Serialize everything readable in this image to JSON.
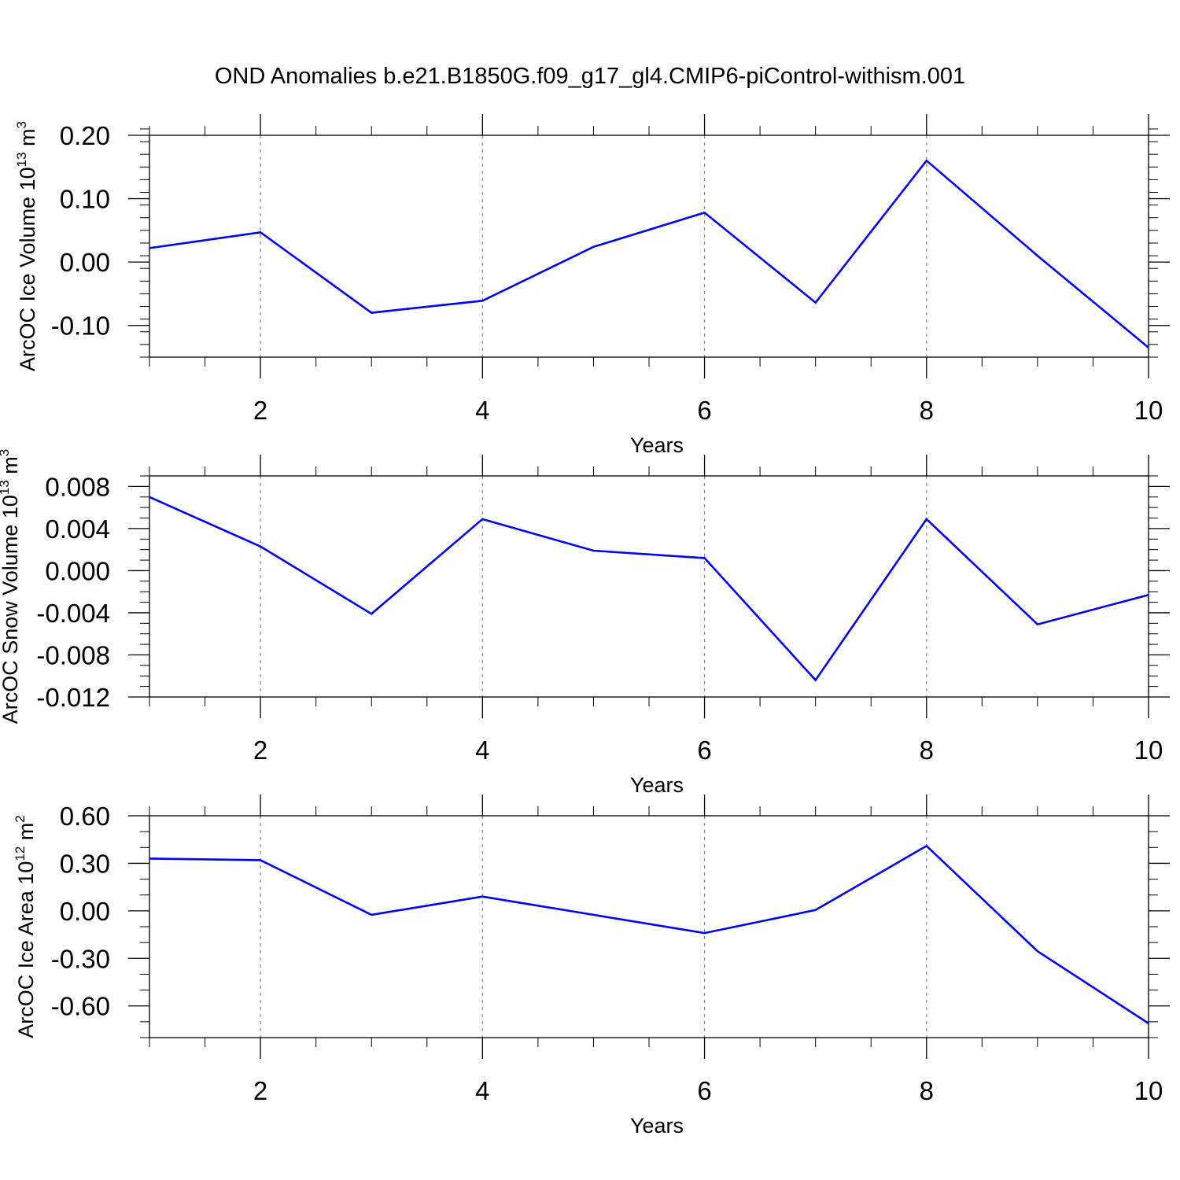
{
  "title": "OND Anomalies b.e21.B1850G.f09_g17_gl4.CMIP6-piControl-withism.001",
  "colors": {
    "line": "#0000ff",
    "axis": "#000000",
    "grid": "#888888"
  },
  "chart_data": [
    {
      "type": "line",
      "xlabel": "Years",
      "ylabel": {
        "text": "ArcOC Ice Volume 10",
        "sup": "13",
        "unit": " m",
        "unit_sup": "3"
      },
      "x": [
        1,
        2,
        3,
        4,
        5,
        6,
        7,
        8,
        9,
        10
      ],
      "y": [
        0.022,
        0.047,
        -0.08,
        -0.061,
        0.024,
        0.078,
        -0.064,
        0.16,
        0.01,
        -0.135
      ],
      "xlim": [
        1,
        10
      ],
      "ylim": [
        -0.15,
        0.2
      ],
      "xticks": [
        2,
        4,
        6,
        8,
        10
      ],
      "xtick_labels": [
        "2",
        "4",
        "6",
        "8",
        "10"
      ],
      "yticks": [
        0.2,
        0.1,
        0.0,
        -0.1
      ],
      "ytick_labels": [
        "0.20",
        "0.10",
        "0.00",
        "-0.10"
      ],
      "y_minor_step": 0.02,
      "x_minor_step": 0.5,
      "grid": "vertical dashed at major x ticks"
    },
    {
      "type": "line",
      "xlabel": "Years",
      "ylabel": {
        "text": "ArcOC Snow Volume 10",
        "sup": "13",
        "unit": " m",
        "unit_sup": "3"
      },
      "x": [
        1,
        2,
        3,
        4,
        5,
        6,
        7,
        8,
        9,
        10
      ],
      "y": [
        0.007,
        0.0023,
        -0.0041,
        0.0049,
        0.0019,
        0.0012,
        -0.0104,
        0.0049,
        -0.0051,
        -0.0023
      ],
      "xlim": [
        1,
        10
      ],
      "ylim": [
        -0.012,
        0.009
      ],
      "xticks": [
        2,
        4,
        6,
        8,
        10
      ],
      "xtick_labels": [
        "2",
        "4",
        "6",
        "8",
        "10"
      ],
      "yticks": [
        0.008,
        0.004,
        0.0,
        -0.004,
        -0.008,
        -0.012
      ],
      "ytick_labels": [
        "0.008",
        "0.004",
        "0.000",
        "-0.004",
        "-0.008",
        "-0.012"
      ],
      "y_minor_step": 0.001,
      "x_minor_step": 0.5,
      "grid": "vertical dashed at major x ticks"
    },
    {
      "type": "line",
      "xlabel": "Years",
      "ylabel": {
        "text": "ArcOC Ice Area 10",
        "sup": "12",
        "unit": " m",
        "unit_sup": "2"
      },
      "x": [
        1,
        2,
        3,
        4,
        5,
        6,
        7,
        8,
        9,
        10
      ],
      "y": [
        0.33,
        0.32,
        -0.025,
        0.09,
        -0.025,
        -0.14,
        0.005,
        0.41,
        -0.255,
        -0.71
      ],
      "xlim": [
        1,
        10
      ],
      "ylim": [
        -0.8,
        0.6
      ],
      "xticks": [
        2,
        4,
        6,
        8,
        10
      ],
      "xtick_labels": [
        "2",
        "4",
        "6",
        "8",
        "10"
      ],
      "yticks": [
        0.6,
        0.3,
        0.0,
        -0.3,
        -0.6
      ],
      "ytick_labels": [
        "0.60",
        "0.30",
        "0.00",
        "-0.30",
        "-0.60"
      ],
      "y_minor_step": 0.1,
      "x_minor_step": 0.5,
      "grid": "vertical dashed at major x ticks"
    }
  ]
}
